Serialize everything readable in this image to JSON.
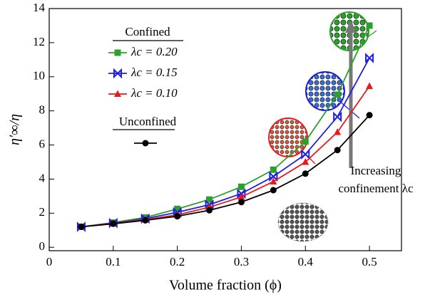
{
  "chart_data": {
    "type": "line",
    "x_label": "Volume fraction (ϕ)",
    "y_label": "η′∞/η",
    "x": [
      0.05,
      0.1,
      0.15,
      0.2,
      0.25,
      0.3,
      0.35,
      0.4,
      0.45,
      0.5
    ],
    "series": [
      {
        "name": "λc = 0.20",
        "color": "#2ca02c",
        "marker": "square",
        "values": [
          1.2,
          1.45,
          1.75,
          2.25,
          2.8,
          3.55,
          4.55,
          6.2,
          8.95,
          13.0
        ]
      },
      {
        "name": "λc = 0.15",
        "color": "#1f1fe0",
        "marker": "bowtie",
        "values": [
          1.2,
          1.42,
          1.68,
          2.05,
          2.5,
          3.15,
          4.15,
          5.45,
          7.65,
          11.1
        ]
      },
      {
        "name": "λc = 0.10",
        "color": "#e41a1c",
        "marker": "triangle",
        "values": [
          1.2,
          1.4,
          1.62,
          1.9,
          2.35,
          2.95,
          3.85,
          5.0,
          6.75,
          9.45
        ]
      },
      {
        "name": "Unconfined",
        "color": "#000000",
        "marker": "circle",
        "values": [
          1.2,
          1.38,
          1.58,
          1.82,
          2.17,
          2.65,
          3.35,
          4.32,
          5.7,
          7.75
        ]
      }
    ],
    "legend_title": "Confined",
    "annotation": [
      "Increasing",
      "confinement λc"
    ],
    "xlim": [
      0,
      0.55
    ],
    "xticks": [
      0,
      0.1,
      0.2,
      0.3,
      0.4,
      0.5
    ],
    "ylim": [
      -0.2,
      14
    ],
    "yticks": [
      0,
      2,
      4,
      6,
      8,
      10,
      12,
      14
    ],
    "grid": false
  }
}
